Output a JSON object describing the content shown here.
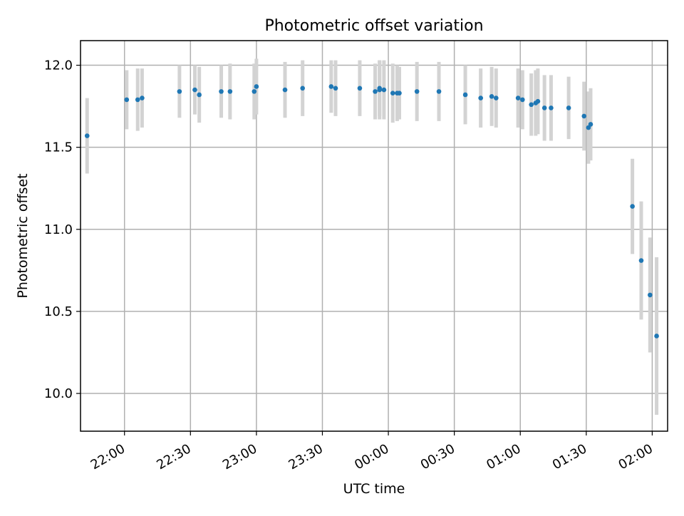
{
  "chart_data": {
    "type": "scatter",
    "title": "Photometric offset variation",
    "xlabel": "UTC time",
    "ylabel": "Photometric offset",
    "x_axis": {
      "kind": "time",
      "range": [
        "21:40",
        "02:07"
      ],
      "ticks": [
        "22:00",
        "22:30",
        "23:00",
        "23:30",
        "00:00",
        "00:30",
        "01:00",
        "01:30",
        "02:00"
      ],
      "tick_label_rotation": "30 degrees"
    },
    "y_axis": {
      "range": [
        9.77,
        12.15
      ],
      "ticks": [
        "10.0",
        "10.5",
        "11.0",
        "11.5",
        "12.0"
      ]
    },
    "grid": true,
    "legend": "none",
    "colors": {
      "point": "#1f77b4",
      "errorbar": "#d3d3d3",
      "grid": "#b0b0b0"
    },
    "series": [
      {
        "x": [
          "21:43",
          "22:01",
          "22:06",
          "22:08",
          "22:25",
          "22:32",
          "22:34",
          "22:44",
          "22:48",
          "22:59",
          "23:00",
          "23:13",
          "23:21",
          "23:34",
          "23:36",
          "23:47",
          "23:54",
          "23:56",
          "23:56",
          "23:58",
          "00:02",
          "00:04",
          "00:05",
          "00:13",
          "00:23",
          "00:35",
          "00:42",
          "00:47",
          "00:49",
          "00:59",
          "01:01",
          "01:05",
          "01:07",
          "01:08",
          "01:11",
          "01:14",
          "01:22",
          "01:29",
          "01:31",
          "01:32",
          "01:51",
          "01:55",
          "01:59",
          "02:02"
        ],
        "y": [
          11.57,
          11.79,
          11.79,
          11.8,
          11.84,
          11.85,
          11.82,
          11.84,
          11.84,
          11.84,
          11.87,
          11.85,
          11.86,
          11.87,
          11.86,
          11.86,
          11.84,
          11.86,
          11.85,
          11.85,
          11.83,
          11.83,
          11.83,
          11.84,
          11.84,
          11.82,
          11.8,
          11.81,
          11.8,
          11.8,
          11.79,
          11.76,
          11.77,
          11.78,
          11.74,
          11.74,
          11.74,
          11.69,
          11.62,
          11.64,
          11.14,
          10.81,
          10.6,
          10.35
        ],
        "yerr": [
          0.23,
          0.18,
          0.19,
          0.18,
          0.16,
          0.15,
          0.17,
          0.16,
          0.17,
          0.17,
          0.17,
          0.17,
          0.17,
          0.16,
          0.17,
          0.17,
          0.17,
          0.17,
          0.18,
          0.18,
          0.18,
          0.17,
          0.16,
          0.18,
          0.18,
          0.18,
          0.18,
          0.18,
          0.18,
          0.18,
          0.18,
          0.19,
          0.2,
          0.2,
          0.2,
          0.2,
          0.19,
          0.21,
          0.22,
          0.22,
          0.29,
          0.36,
          0.35,
          0.48
        ]
      }
    ]
  }
}
